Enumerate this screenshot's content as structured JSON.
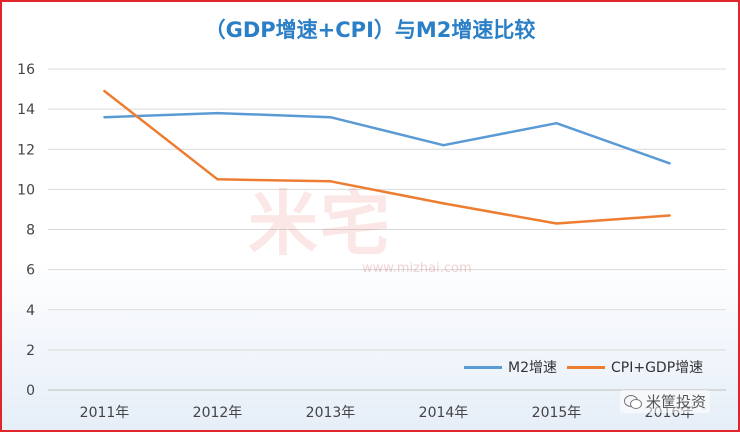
{
  "chart_data": {
    "type": "line",
    "title": "（GDP增速+CPI）与M2增速比较",
    "categories": [
      "2011年",
      "2012年",
      "2013年",
      "2014年",
      "2015年",
      "2016年"
    ],
    "ylim": [
      0,
      16
    ],
    "yticks": [
      "0",
      "2",
      "4",
      "6",
      "8",
      "10",
      "12",
      "14",
      "16"
    ],
    "grid": true,
    "legend_position": "bottom-right",
    "series": [
      {
        "name": "M2增速",
        "color": "#5b9bd5",
        "values": [
          13.6,
          13.8,
          13.6,
          12.2,
          13.3,
          11.3
        ]
      },
      {
        "name": "CPI+GDP增速",
        "color": "#ed7d31",
        "values": [
          14.9,
          10.5,
          10.4,
          9.3,
          8.3,
          8.7
        ]
      }
    ]
  },
  "watermark": {
    "logo": "米宅",
    "url": "www.mizhai.com"
  },
  "badge": {
    "text": "米筐投资",
    "icon": "wechat-icon"
  }
}
